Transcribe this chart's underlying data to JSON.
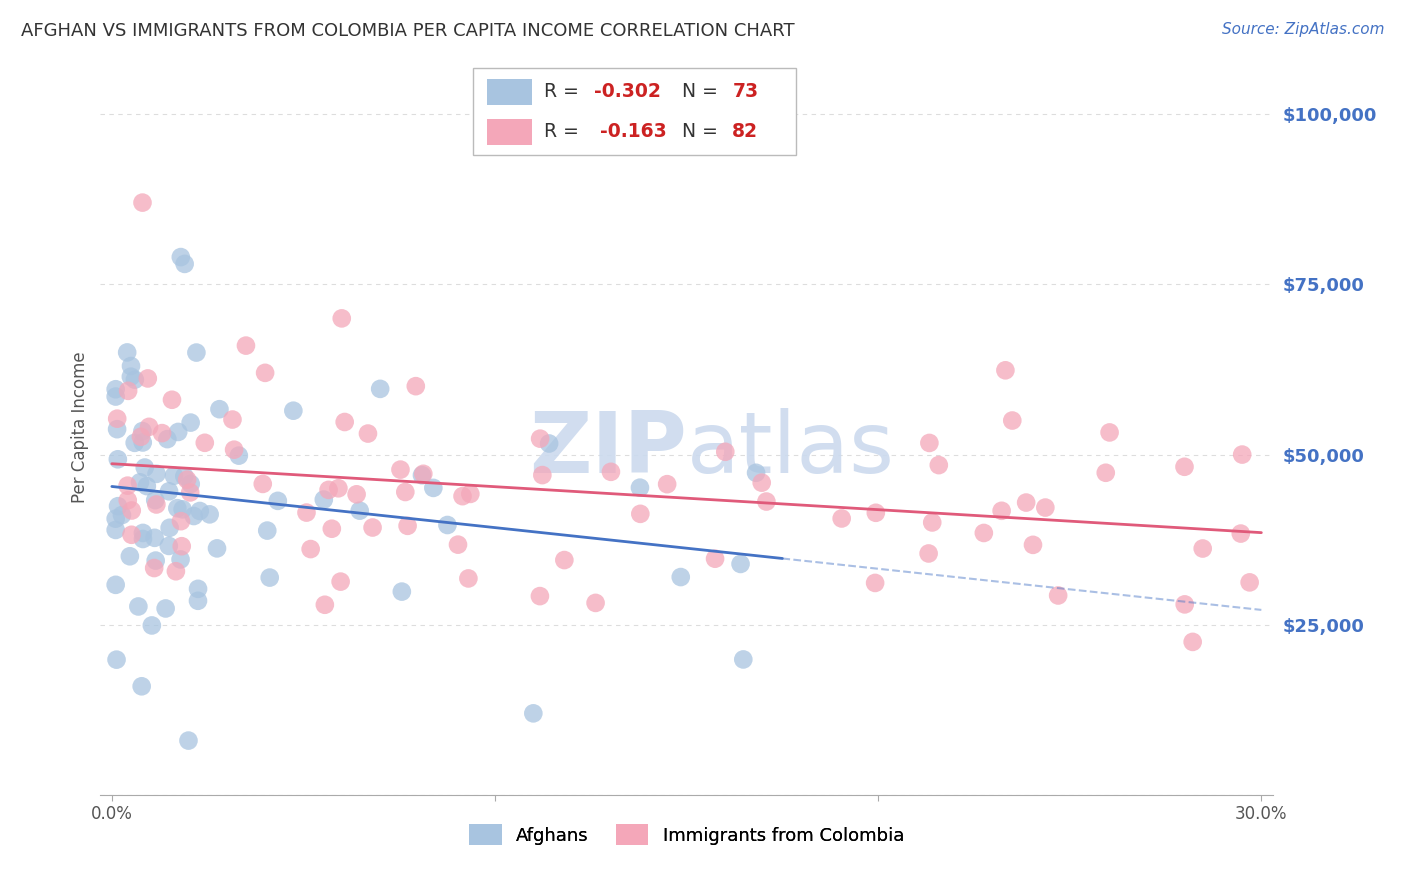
{
  "title": "AFGHAN VS IMMIGRANTS FROM COLOMBIA PER CAPITA INCOME CORRELATION CHART",
  "source": "Source: ZipAtlas.com",
  "ylabel": "Per Capita Income",
  "color_afghan": "#a8c4e0",
  "color_colombia": "#f4a7b9",
  "line_color_afghan": "#4472c4",
  "line_color_colombia": "#e05a7a",
  "background_color": "#ffffff",
  "watermark_color": "#ccdaee",
  "grid_color": "#dddddd",
  "title_color": "#333333",
  "source_color": "#4472c4",
  "ytick_color": "#4472c4",
  "legend_text_color": "#cc2222",
  "legend_label_color": "#333333"
}
